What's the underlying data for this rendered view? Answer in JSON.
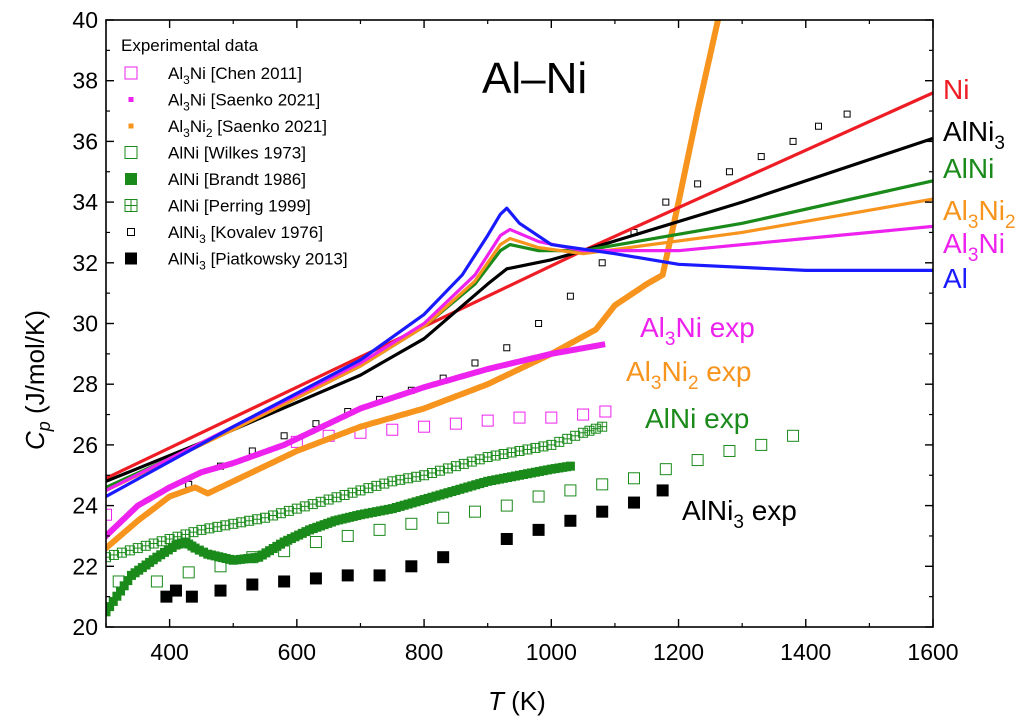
{
  "chart_data": {
    "type": "line",
    "title": "Al–Ni",
    "xlabel": {
      "main": "T",
      "unit": " (K)"
    },
    "ylabel": {
      "main": "C",
      "sub": "p",
      "unit": " (J/mol/K)"
    },
    "xlim": [
      300,
      1600
    ],
    "ylim": [
      20,
      40
    ],
    "xticks": [
      "400",
      "600",
      "800",
      "1000",
      "1200",
      "1400",
      "1600"
    ],
    "yticks": [
      "20",
      "22",
      "24",
      "26",
      "28",
      "30",
      "32",
      "34",
      "36",
      "38",
      "40"
    ],
    "grid": false,
    "legend": {
      "title": "Experimental data",
      "placement": "top-left",
      "items": [
        {
          "parts": [
            [
              "Al",
              ""
            ],
            [
              "3",
              "sub"
            ],
            [
              "Ni [Chen 2011]",
              ""
            ]
          ],
          "marker": "open-square",
          "color": "#ee22ee"
        },
        {
          "parts": [
            [
              "Al",
              ""
            ],
            [
              "3",
              "sub"
            ],
            [
              "Ni [Saenko 2021]",
              ""
            ]
          ],
          "marker": "small-filled-square",
          "color": "#ee22ee"
        },
        {
          "parts": [
            [
              "Al",
              ""
            ],
            [
              "3",
              "sub"
            ],
            [
              "Ni",
              ""
            ],
            [
              "2",
              "sub"
            ],
            [
              " [Saenko 2021]",
              ""
            ]
          ],
          "marker": "small-filled-square",
          "color": "#f7941d"
        },
        {
          "parts": [
            [
              "AlNi [Wilkes 1973]",
              ""
            ]
          ],
          "marker": "open-square",
          "color": "#1a8a1a"
        },
        {
          "parts": [
            [
              "AlNi [Brandt 1986]",
              ""
            ]
          ],
          "marker": "filled-square",
          "color": "#1a8a1a"
        },
        {
          "parts": [
            [
              "AlNi [Perring 1999]",
              ""
            ]
          ],
          "marker": "crossed-square",
          "color": "#1a8a1a"
        },
        {
          "parts": [
            [
              "AlNi",
              ""
            ],
            [
              "3",
              "sub"
            ],
            [
              " [Kovalev 1976]",
              ""
            ]
          ],
          "marker": "small-open-square",
          "color": "#000000"
        },
        {
          "parts": [
            [
              "AlNi",
              ""
            ],
            [
              "3",
              "sub"
            ],
            [
              " [Piatkowsky 2013]",
              ""
            ]
          ],
          "marker": "filled-square",
          "color": "#000000"
        }
      ]
    },
    "series": [
      {
        "name": "Ni",
        "kind": "calc",
        "color": "#ee1c24",
        "x": [
          300,
          930,
          1050,
          1600
        ],
        "y": [
          24.9,
          31.2,
          32.4,
          37.6
        ]
      },
      {
        "name": "AlNi3",
        "kind": "calc",
        "color": "#000000",
        "x": [
          300,
          500,
          700,
          800,
          900,
          930,
          1000,
          1050,
          1300,
          1600
        ],
        "y": [
          24.8,
          26.5,
          28.3,
          29.5,
          31.3,
          31.8,
          32.1,
          32.4,
          34.0,
          36.1
        ]
      },
      {
        "name": "AlNi",
        "kind": "calc",
        "color": "#1a8a1a",
        "x": [
          300,
          500,
          700,
          800,
          880,
          920,
          935,
          980,
          1050,
          1300,
          1600
        ],
        "y": [
          24.6,
          26.5,
          28.6,
          29.9,
          31.3,
          32.4,
          32.6,
          32.4,
          32.4,
          33.3,
          34.7
        ]
      },
      {
        "name": "Al3Ni2",
        "kind": "calc",
        "color": "#f7941d",
        "x": [
          300,
          500,
          700,
          800,
          880,
          920,
          935,
          980,
          1050,
          1300,
          1600
        ],
        "y": [
          24.5,
          26.5,
          28.6,
          29.9,
          31.4,
          32.6,
          32.8,
          32.5,
          32.3,
          33.0,
          34.1
        ]
      },
      {
        "name": "Al3Ni",
        "kind": "calc",
        "color": "#ee22ee",
        "x": [
          300,
          500,
          700,
          800,
          880,
          920,
          935,
          980,
          1050,
          1200,
          1400,
          1600
        ],
        "y": [
          24.5,
          26.6,
          28.7,
          30.0,
          31.6,
          32.9,
          33.1,
          32.7,
          32.4,
          32.4,
          32.8,
          33.2
        ]
      },
      {
        "name": "Al",
        "kind": "calc",
        "color": "#1a1aff",
        "x": [
          300,
          500,
          700,
          800,
          860,
          900,
          920,
          930,
          950,
          1000,
          1100,
          1200,
          1400,
          1600
        ],
        "y": [
          24.3,
          26.6,
          28.8,
          30.3,
          31.6,
          32.9,
          33.6,
          33.8,
          33.3,
          32.6,
          32.3,
          31.95,
          31.75,
          31.75
        ]
      },
      {
        "name": "Al3Ni2 exp",
        "kind": "exp",
        "color": "#f7941d",
        "x": [
          300,
          350,
          400,
          440,
          460,
          500,
          600,
          700,
          800,
          900,
          1000,
          1070,
          1100,
          1150,
          1175,
          1200,
          1230,
          1262
        ],
        "y": [
          22.6,
          23.5,
          24.3,
          24.6,
          24.4,
          24.8,
          25.8,
          26.6,
          27.2,
          28.0,
          29.0,
          29.8,
          30.6,
          31.3,
          31.6,
          34.0,
          37.0,
          40.0
        ]
      },
      {
        "name": "Al3Ni exp",
        "kind": "exp",
        "color": "#ee22ee",
        "x": [
          300,
          350,
          400,
          450,
          500,
          580,
          650,
          700,
          800,
          900,
          1000,
          1080
        ],
        "y": [
          23.0,
          24.0,
          24.6,
          25.1,
          25.4,
          26.0,
          26.7,
          27.2,
          27.9,
          28.5,
          29.0,
          29.3
        ]
      },
      {
        "name": "AlNi [Brandt 1986]",
        "kind": "exp",
        "color": "#1a8a1a",
        "x": [
          300,
          340,
          380,
          410,
          425,
          440,
          460,
          500,
          540,
          580,
          620,
          660,
          700,
          750,
          800,
          850,
          900,
          950,
          1000,
          1030
        ],
        "y": [
          20.5,
          21.7,
          22.3,
          22.7,
          22.8,
          22.6,
          22.4,
          22.2,
          22.3,
          22.8,
          23.2,
          23.5,
          23.7,
          23.9,
          24.2,
          24.5,
          24.8,
          25.0,
          25.2,
          25.3
        ]
      },
      {
        "name": "AlNi [Perring 1999]",
        "kind": "exp",
        "color": "#1a8a1a",
        "x": [
          300,
          350,
          400,
          450,
          500,
          550,
          600,
          650,
          700,
          750,
          800,
          850,
          900,
          950,
          1000,
          1050,
          1080
        ],
        "y": [
          22.3,
          22.6,
          22.9,
          23.2,
          23.4,
          23.6,
          23.9,
          24.2,
          24.5,
          24.8,
          25.0,
          25.3,
          25.6,
          25.8,
          26.0,
          26.4,
          26.6
        ]
      }
    ],
    "scatter": [
      {
        "name": "Al3Ni [Chen 2011]",
        "marker": "open",
        "color": "#ee22ee",
        "x": [
          300,
          600,
          650,
          700,
          750,
          800,
          850,
          900,
          950,
          1000,
          1050,
          1085
        ],
        "y": [
          23.7,
          26.1,
          26.3,
          26.4,
          26.5,
          26.6,
          26.7,
          26.8,
          26.9,
          26.9,
          27.0,
          27.1
        ]
      },
      {
        "name": "AlNi [Wilkes 1973]",
        "marker": "open",
        "color": "#1a8a1a",
        "x": [
          320,
          380,
          430,
          480,
          530,
          580,
          630,
          680,
          730,
          780,
          830,
          880,
          930,
          980,
          1030,
          1080,
          1130,
          1180,
          1230,
          1280,
          1330,
          1380
        ],
        "y": [
          21.5,
          21.5,
          21.8,
          22.0,
          22.3,
          22.5,
          22.8,
          23.0,
          23.2,
          23.4,
          23.6,
          23.8,
          24.0,
          24.3,
          24.5,
          24.7,
          24.9,
          25.2,
          25.5,
          25.8,
          26.0,
          26.3
        ]
      },
      {
        "name": "AlNi3 [Kovalev 1976]",
        "marker": "small-open",
        "color": "#000000",
        "x": [
          430,
          480,
          530,
          580,
          630,
          680,
          730,
          780,
          830,
          880,
          930,
          980,
          1030,
          1080,
          1130,
          1180,
          1230,
          1280,
          1330,
          1380,
          1420,
          1465
        ],
        "y": [
          24.7,
          25.3,
          25.8,
          26.3,
          26.7,
          27.1,
          27.5,
          27.8,
          28.2,
          28.7,
          29.2,
          30.0,
          30.9,
          32.0,
          33.0,
          34.0,
          34.6,
          35.0,
          35.5,
          36.0,
          36.5,
          36.9
        ]
      },
      {
        "name": "AlNi3 [Piatkowsky 2013]",
        "marker": "filled",
        "color": "#000000",
        "x": [
          395,
          410,
          435,
          480,
          530,
          580,
          630,
          680,
          730,
          780,
          830,
          930,
          980,
          1030,
          1080,
          1130,
          1175
        ],
        "y": [
          21.0,
          21.2,
          21.0,
          21.2,
          21.4,
          21.5,
          21.6,
          21.7,
          21.7,
          22.0,
          22.3,
          22.9,
          23.2,
          23.5,
          23.8,
          24.1,
          24.5
        ]
      }
    ],
    "right_labels": [
      {
        "parts": [
          [
            "Ni",
            ""
          ]
        ],
        "color": "#ee1c24"
      },
      {
        "parts": [
          [
            "AlNi",
            ""
          ],
          [
            "3",
            "sub"
          ]
        ],
        "color": "#000000"
      },
      {
        "parts": [
          [
            "AlNi",
            ""
          ]
        ],
        "color": "#1a8a1a"
      },
      {
        "parts": [
          [
            "Al",
            ""
          ],
          [
            "3",
            "sub"
          ],
          [
            "Ni",
            ""
          ],
          [
            "2",
            "sub"
          ]
        ],
        "color": "#f7941d"
      },
      {
        "parts": [
          [
            "Al",
            ""
          ],
          [
            "3",
            "sub"
          ],
          [
            "Ni",
            ""
          ]
        ],
        "color": "#ee22ee"
      },
      {
        "parts": [
          [
            "Al",
            ""
          ]
        ],
        "color": "#1a1aff"
      }
    ],
    "annotations": [
      {
        "parts": [
          [
            "Al",
            ""
          ],
          [
            "3",
            "sub"
          ],
          [
            "Ni exp",
            ""
          ]
        ],
        "color": "#ee22ee"
      },
      {
        "parts": [
          [
            "Al",
            ""
          ],
          [
            "3",
            "sub"
          ],
          [
            "Ni",
            ""
          ],
          [
            "2",
            "sub"
          ],
          [
            " exp",
            ""
          ]
        ],
        "color": "#f7941d"
      },
      {
        "parts": [
          [
            "AlNi exp",
            ""
          ]
        ],
        "color": "#1a8a1a"
      },
      {
        "parts": [
          [
            "AlNi",
            ""
          ],
          [
            "3",
            "sub"
          ],
          [
            " exp",
            ""
          ]
        ],
        "color": "#000000"
      }
    ]
  }
}
